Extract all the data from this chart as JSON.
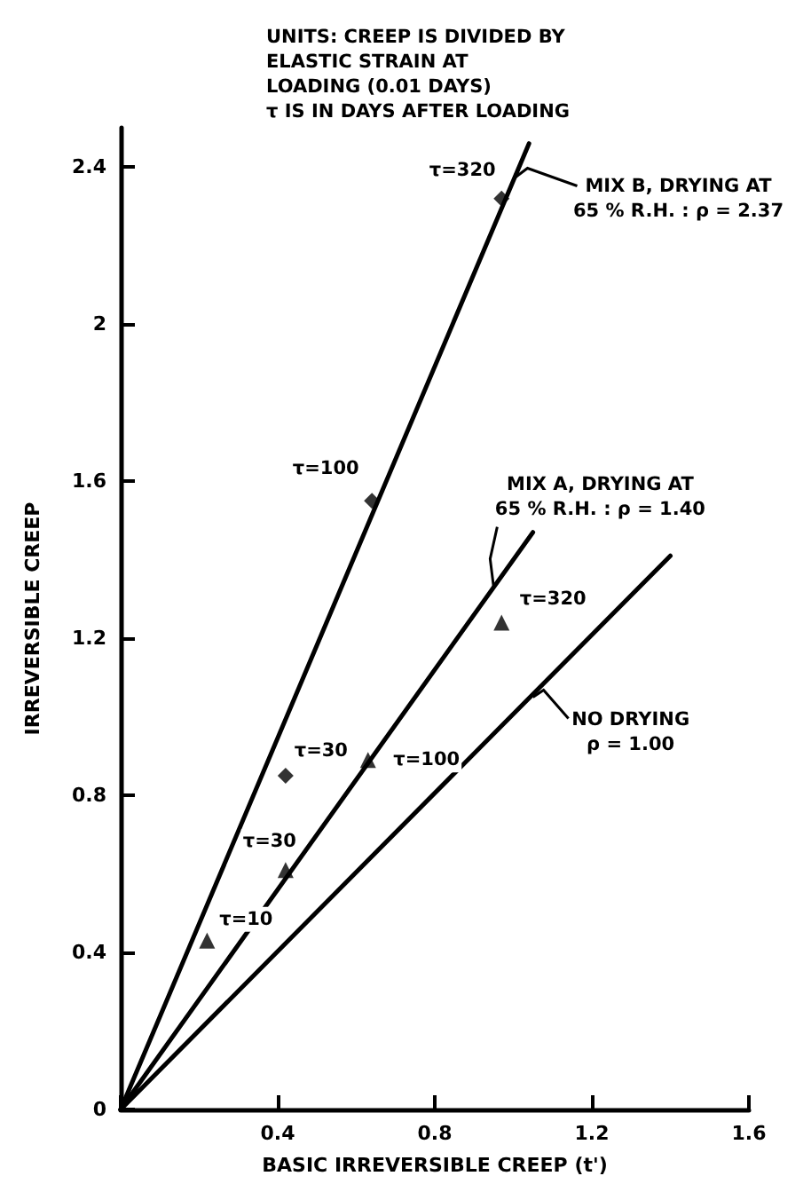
{
  "chart_data": {
    "type": "line",
    "xlabel": "BASIC IRREVERSIBLE CREEP (t')",
    "ylabel": "IRREVERSIBLE CREEP",
    "xlim": [
      0,
      1.6
    ],
    "ylim": [
      0,
      2.5
    ],
    "xticks": [
      {
        "value": 0,
        "label": null
      },
      0.4,
      0.8,
      1.2,
      1.6
    ],
    "yticks": [
      0,
      0.4,
      0.8,
      1.2,
      1.6,
      2.0,
      2.4
    ],
    "grid": false,
    "line_style": "solid",
    "series": [
      {
        "color": "#000000",
        "x": [
          0,
          1.04
        ],
        "values": [
          0,
          2.46
        ],
        "marker": "none"
      },
      {
        "color": "#000000",
        "x": [
          0,
          1.05
        ],
        "values": [
          0,
          1.47
        ],
        "marker": "none"
      },
      {
        "color": "#000000",
        "x": [
          0,
          1.4
        ],
        "values": [
          0,
          1.41
        ],
        "marker": "none"
      },
      {
        "type": "scatter",
        "color": "#000000",
        "x": [
          0.42,
          0.64,
          0.97
        ],
        "values": [
          0.85,
          1.55,
          2.32
        ],
        "marker": "diamond"
      },
      {
        "type": "scatter",
        "color": "#000000",
        "x": [
          0.22,
          0.42,
          0.63,
          0.97
        ],
        "values": [
          0.43,
          0.61,
          0.89,
          1.24
        ],
        "marker": "triangle"
      }
    ],
    "annotations": [
      "UNITS: CREEP IS DIVIDED BY\nELASTIC STRAIN AT\nLOADING (0.01 DAYS)\nτ IS IN DAYS AFTER LOADING",
      {
        "text": "τ=320",
        "x": 0.97,
        "y": 2.32
      },
      {
        "text": "τ=100",
        "x": 0.64,
        "y": 1.55
      },
      {
        "text": "τ=30",
        "x": 0.42,
        "y": 0.85
      },
      {
        "text": "τ=30",
        "x": 0.42,
        "y": 0.61
      },
      {
        "text": "τ=10",
        "x": 0.22,
        "y": 0.43
      },
      {
        "text": "τ=100",
        "x": 0.63,
        "y": 0.89
      },
      {
        "text": "τ=320",
        "x": 0.97,
        "y": 1.24
      },
      {
        "text": "MIX B, DRYING AT\n65 % R.H. : ρ = 2.37",
        "x": 1.0,
        "y": 2.37
      },
      {
        "text": "MIX A, DRYING AT\n65 % R.H. : ρ = 1.40",
        "x": 0.95,
        "y": 1.33
      },
      {
        "text": "NO DRYING\nρ = 1.00",
        "x": 1.05,
        "y": 1.05
      }
    ]
  }
}
